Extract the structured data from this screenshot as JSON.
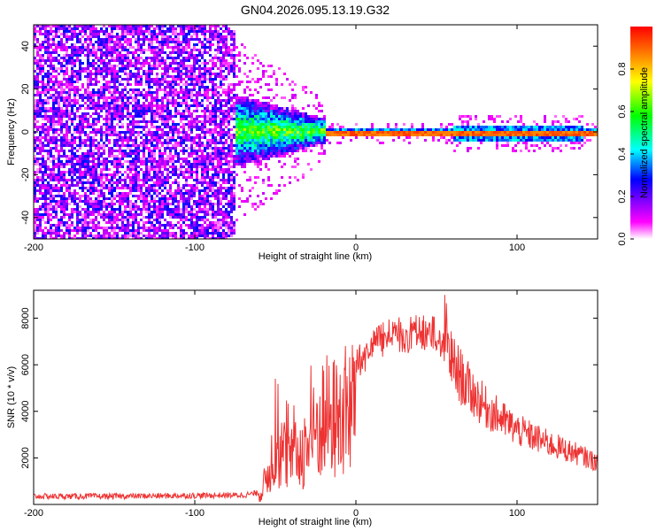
{
  "page": {
    "title": "GN04.2026.095.13.19.G32"
  },
  "chart_data": [
    {
      "type": "heatmap",
      "title": "GN04.2026.095.13.19.G32",
      "xlabel": "Height of straight line (km)",
      "ylabel": "Frequency (Hz)",
      "xlim": [
        -200,
        150
      ],
      "ylim": [
        -50,
        50
      ],
      "xticks": [
        -200,
        -100,
        0,
        100
      ],
      "xtick_labels": [
        "-200",
        "-100",
        "0",
        "100"
      ],
      "yticks": [
        -40,
        -20,
        0,
        20,
        40
      ],
      "ytick_labels": [
        "-40",
        "-20",
        "0",
        "20",
        "40"
      ],
      "colorbar": {
        "label": "Normalized spectral amplitude",
        "range": [
          0,
          1
        ],
        "ticks": [
          0.0,
          0.2,
          0.4,
          0.6,
          0.8
        ],
        "tick_labels": [
          "0.0",
          "0.2",
          "0.4",
          "0.6",
          "0.8"
        ],
        "colors": [
          "#ffffff",
          "#ff00ff",
          "#0000ff",
          "#00ffff",
          "#00ff00",
          "#ffff00",
          "#ff0000"
        ]
      },
      "regions": [
        {
          "x_range": [
            -200,
            -75
          ],
          "description": "broadband noise",
          "amplitude": 0.15
        },
        {
          "x_range": [
            -75,
            -20
          ],
          "center_freq": 1,
          "spread_hz": 6,
          "amplitude": 0.5
        },
        {
          "x_range": [
            -20,
            150
          ],
          "center_freq": 0,
          "spread_hz": 2,
          "amplitude": 0.95
        }
      ]
    },
    {
      "type": "line",
      "xlabel": "Height of straight line (km)",
      "ylabel": "SNR (10 * v/v)",
      "xlim": [
        -200,
        150
      ],
      "ylim": [
        0,
        9200
      ],
      "xticks": [
        -200,
        -100,
        0,
        100
      ],
      "xtick_labels": [
        "-200",
        "-100",
        "0",
        "100"
      ],
      "yticks": [
        2000,
        4000,
        6000,
        8000
      ],
      "ytick_labels": [
        "2000",
        "4000",
        "6000",
        "8000"
      ],
      "color": "#ee3333",
      "envelope": {
        "x": [
          -200,
          -150,
          -70,
          -60,
          -55,
          -50,
          -45,
          -40,
          -35,
          -30,
          -25,
          -20,
          -15,
          -10,
          -5,
          0,
          5,
          10,
          15,
          20,
          30,
          40,
          50,
          55,
          60,
          70,
          80,
          100,
          120,
          140,
          150
        ],
        "y": [
          350,
          350,
          400,
          500,
          2000,
          4000,
          3500,
          3000,
          3500,
          4000,
          5000,
          6000,
          5800,
          6000,
          6500,
          6800,
          7000,
          7500,
          7800,
          8000,
          8100,
          8200,
          8100,
          7500,
          6000,
          5000,
          4200,
          3200,
          2600,
          2100,
          1800
        ]
      }
    }
  ]
}
